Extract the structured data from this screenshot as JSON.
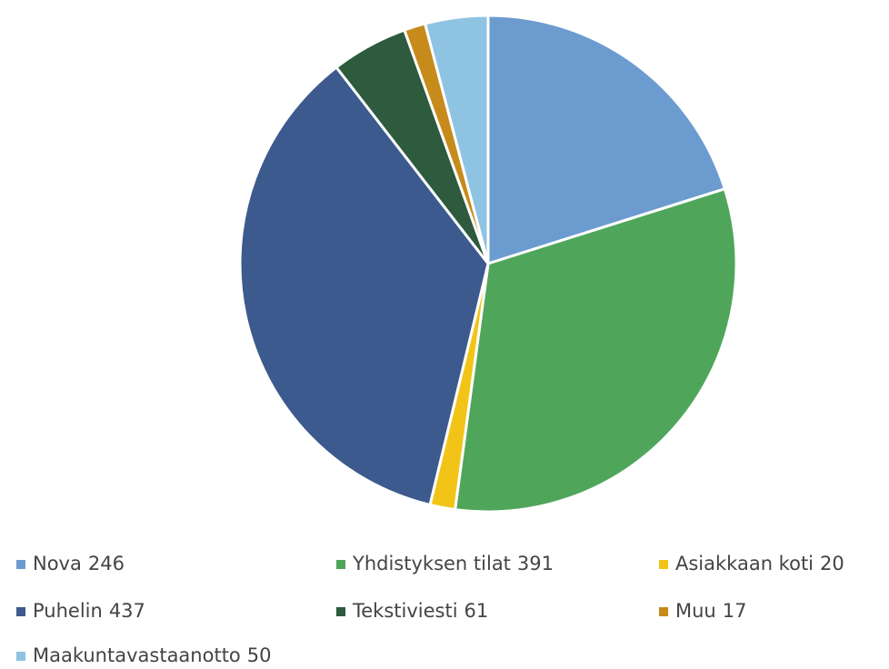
{
  "chart_data": {
    "type": "pie",
    "categories": [
      "Nova",
      "Yhdistyksen tilat",
      "Asiakkaan koti",
      "Puhelin",
      "Tekstiviesti",
      "Muu",
      "Maakuntavastaanotto"
    ],
    "values": [
      246,
      391,
      20,
      437,
      61,
      17,
      50
    ],
    "colors": [
      "#6c9bcf",
      "#4fa65b",
      "#f2c418",
      "#3d5a8e",
      "#2e5a3d",
      "#c68b1b",
      "#8fc3e2"
    ],
    "legend": "bottom"
  }
}
